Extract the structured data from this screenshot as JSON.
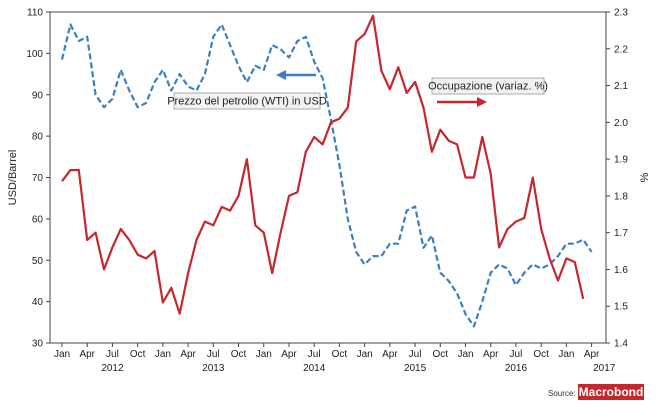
{
  "chart_data": {
    "type": "line",
    "title": "",
    "ylabel_left": "USD/Barrel",
    "ylabel_right": "%",
    "ylim_left": [
      30,
      110
    ],
    "ylim_right": [
      1.4,
      2.3
    ],
    "yticks_left": [
      30,
      40,
      50,
      60,
      70,
      80,
      90,
      100,
      110
    ],
    "yticks_right": [
      "1.4",
      "1.5",
      "1.6",
      "1.7",
      "1.8",
      "1.9",
      "2.0",
      "2.1",
      "2.2",
      "2.3"
    ],
    "x_month_labels": [
      "Jan",
      "Apr",
      "Jul",
      "Oct",
      "Jan",
      "Apr",
      "Jul",
      "Oct",
      "Jan",
      "Apr",
      "Jul",
      "Oct",
      "Jan",
      "Apr",
      "Jul",
      "Oct",
      "Jan",
      "Apr",
      "Jul",
      "Oct",
      "Jan",
      "Apr"
    ],
    "x_year_labels": [
      {
        "label": "2012",
        "month": 6
      },
      {
        "label": "2013",
        "month": 18
      },
      {
        "label": "2014",
        "month": 30
      },
      {
        "label": "2015",
        "month": 42
      },
      {
        "label": "2016",
        "month": 54
      },
      {
        "label": "2017",
        "month": 64.5
      }
    ],
    "x_start": "2012-01",
    "series": [
      {
        "name": "Prezzo del petrolio (WTI) in USD",
        "axis": "left",
        "color": "#3a7fc4",
        "style": "dashed",
        "values": [
          98.5,
          107,
          103,
          104,
          90,
          87,
          89,
          96,
          91,
          87,
          88,
          93,
          96,
          91,
          95,
          92,
          91,
          95,
          104,
          107,
          102,
          97,
          93,
          97,
          96,
          102,
          101,
          99,
          103,
          104,
          98,
          94,
          84,
          73,
          60,
          52,
          49,
          51,
          51,
          54,
          54,
          62,
          63,
          53,
          56,
          47,
          45,
          42,
          37,
          34,
          40,
          47,
          49,
          48,
          44,
          47,
          49,
          48,
          49,
          51,
          54,
          54,
          55,
          52
        ]
      },
      {
        "name": "Occupazione (variaz. %)",
        "axis": "right",
        "color": "#c4282c",
        "style": "solid",
        "values": [
          1.84,
          1.87,
          1.87,
          1.68,
          1.7,
          1.6,
          1.66,
          1.71,
          1.68,
          1.64,
          1.63,
          1.65,
          1.51,
          1.55,
          1.48,
          1.59,
          1.68,
          1.73,
          1.72,
          1.77,
          1.76,
          1.8,
          1.9,
          1.72,
          1.7,
          1.59,
          1.7,
          1.8,
          1.81,
          1.92,
          1.96,
          1.94,
          2.0,
          2.01,
          2.04,
          2.22,
          2.24,
          2.29,
          2.14,
          2.09,
          2.15,
          2.08,
          2.11,
          2.04,
          1.92,
          1.98,
          1.95,
          1.94,
          1.85,
          1.85,
          1.96,
          1.86,
          1.66,
          1.71,
          1.73,
          1.74,
          1.85,
          1.71,
          1.63,
          1.57,
          1.63,
          1.62,
          1.52
        ]
      }
    ],
    "annotations": [
      {
        "text": "Prezzo del petrolio (WTI) in USD",
        "series": 0,
        "arrow": "left"
      },
      {
        "text": "Occupazione (variaz. %)",
        "series": 1,
        "arrow": "right"
      }
    ],
    "grid": false,
    "source_label": "Source:",
    "logo": "Macrobond"
  }
}
